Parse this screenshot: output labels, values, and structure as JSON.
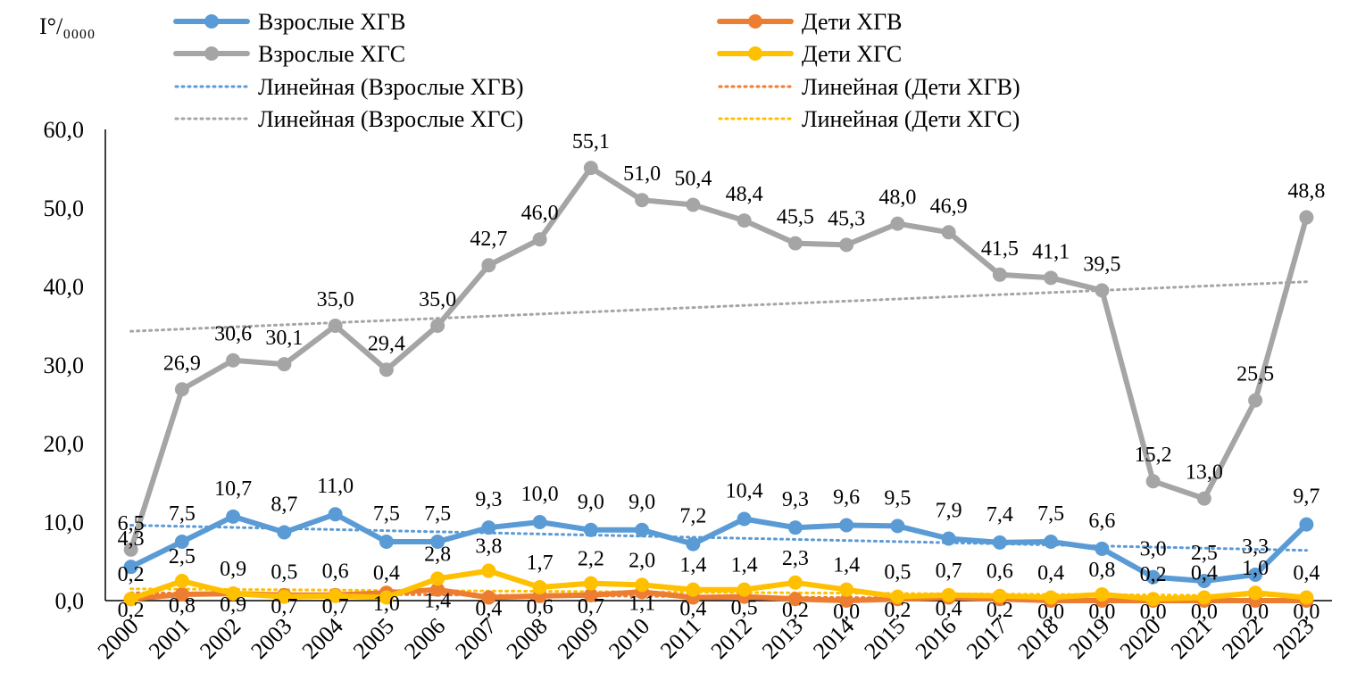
{
  "chart_data": {
    "type": "line",
    "ylabel": "I°/₀₀₀₀",
    "ylim": [
      0,
      60
    ],
    "yticks": [
      "0,0",
      "10,0",
      "20,0",
      "30,0",
      "40,0",
      "50,0",
      "60,0"
    ],
    "categories": [
      "2000",
      "2001",
      "2002",
      "2003",
      "2004",
      "2005",
      "2006",
      "2007",
      "2008",
      "2009",
      "2010",
      "2011",
      "2012",
      "2013",
      "2014",
      "2015",
      "2016",
      "2017",
      "2018",
      "2019",
      "2020",
      "2021",
      "2022",
      "2023"
    ],
    "series": [
      {
        "name": "Взрослые ХГВ",
        "color": "#5b9bd5",
        "values": [
          4.3,
          7.5,
          10.7,
          8.7,
          11.0,
          7.5,
          7.5,
          9.3,
          10.0,
          9.0,
          9.0,
          7.2,
          10.4,
          9.3,
          9.6,
          9.5,
          7.9,
          7.4,
          7.5,
          6.6,
          3.0,
          2.5,
          3.3,
          9.7
        ],
        "labels": [
          "4,3",
          "7,5",
          "10,7",
          "8,7",
          "11,0",
          "7,5",
          "7,5",
          "9,3",
          "10,0",
          "9,0",
          "9,0",
          "7,2",
          "10,4",
          "9,3",
          "9,6",
          "9,5",
          "7,9",
          "7,4",
          "7,5",
          "6,6",
          "3,0",
          "2,5",
          "3,3",
          "9,7"
        ]
      },
      {
        "name": "Дети ХГВ",
        "color": "#ed7d31",
        "values": [
          0.2,
          0.8,
          0.9,
          0.7,
          0.7,
          1.0,
          1.4,
          0.4,
          0.6,
          0.7,
          1.1,
          0.4,
          0.5,
          0.2,
          0.0,
          0.2,
          0.4,
          0.2,
          0.0,
          0.0,
          0.0,
          0.0,
          0.0,
          0.0
        ],
        "labels": [
          "0,2",
          "0,8",
          "0,9",
          "0,7",
          "0,7",
          "1,0",
          "1,4",
          "0,4",
          "0,6",
          "0,7",
          "1,1",
          "0,4",
          "0,5",
          "0,2",
          "0,0",
          "0,2",
          "0,4",
          "0,2",
          "0,0",
          "0,0",
          "0,0",
          "0,0",
          "0,0",
          "0,0"
        ]
      },
      {
        "name": "Взрослые ХГС",
        "color": "#a5a5a5",
        "values": [
          6.5,
          26.9,
          30.6,
          30.1,
          35.0,
          29.4,
          35.0,
          42.7,
          46.0,
          55.1,
          51.0,
          50.4,
          48.4,
          45.5,
          45.3,
          48.0,
          46.9,
          41.5,
          41.1,
          39.5,
          15.2,
          13.0,
          25.5,
          48.8
        ],
        "labels": [
          "6,5",
          "26,9",
          "30,6",
          "30,1",
          "35,0",
          "29,4",
          "35,0",
          "42,7",
          "46,0",
          "55,1",
          "51,0",
          "50,4",
          "48,4",
          "45,5",
          "45,3",
          "48,0",
          "46,9",
          "41,5",
          "41,1",
          "39,5",
          "15,2",
          "13,0",
          "25,5",
          "48,8"
        ]
      },
      {
        "name": "Дети ХГС",
        "color": "#ffc000",
        "values": [
          0.2,
          2.5,
          0.9,
          0.5,
          0.6,
          0.4,
          2.8,
          3.8,
          1.7,
          2.2,
          2.0,
          1.4,
          1.4,
          2.3,
          1.4,
          0.5,
          0.7,
          0.6,
          0.4,
          0.8,
          0.2,
          0.4,
          1.0,
          0.4
        ],
        "labels": [
          "0,2",
          "2,5",
          "0,9",
          "0,5",
          "0,6",
          "0,4",
          "2,8",
          "3,8",
          "1,7",
          "2,2",
          "2,0",
          "1,4",
          "1,4",
          "2,3",
          "1,4",
          "0,5",
          "0,7",
          "0,6",
          "0,4",
          "0,8",
          "0,2",
          "0,4",
          "1,0",
          "0,4"
        ]
      }
    ],
    "trendlines": [
      {
        "name": "Линейная (Взрослые ХГВ)",
        "color": "#5b9bd5",
        "start": 9.6,
        "end": 6.4
      },
      {
        "name": "Линейная (Дети ХГВ)",
        "color": "#ed7d31",
        "start": 1.0,
        "end": 0.0
      },
      {
        "name": "Линейная (Взрослые ХГС)",
        "color": "#a5a5a5",
        "start": 34.3,
        "end": 40.6
      },
      {
        "name": "Линейная (Дети ХГС)",
        "color": "#ffc000",
        "start": 1.5,
        "end": 0.6
      }
    ],
    "legend_position": "top",
    "grid": false
  }
}
